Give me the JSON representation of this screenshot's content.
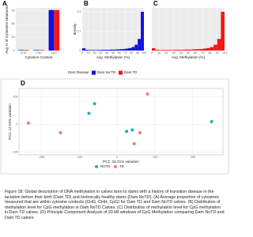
{
  "chart_data": [
    {
      "type": "bar",
      "panel": "A",
      "ylabel": "Avg % of Cytosines Measured",
      "xlabel": "Cytosine Context",
      "categories": [
        "CHG",
        "CHH",
        "CpG"
      ],
      "series": [
        {
          "name": "Dam No TD",
          "color": "#1010e0",
          "values": [
            1,
            1,
            76
          ]
        },
        {
          "name": "Dam TD",
          "color": "#f01818",
          "values": [
            1,
            1,
            76
          ]
        }
      ],
      "ylim": [
        0,
        80
      ],
      "yticks": [
        0,
        25,
        50,
        75
      ],
      "grid": true,
      "legend_title": "Dam Disease"
    },
    {
      "type": "histogram",
      "panel": "B",
      "ylabel": "density",
      "xlabel": "Avg. Methylation (%)",
      "color": "#1010e0",
      "bins": [
        0,
        5,
        10,
        15,
        20,
        25,
        30,
        35,
        40,
        45,
        50,
        55,
        60,
        65,
        70,
        75,
        80,
        85,
        90,
        95,
        100
      ],
      "values": [
        0.012,
        0.004,
        0.003,
        0.003,
        0.003,
        0.003,
        0.004,
        0.004,
        0.004,
        0.005,
        0.005,
        0.006,
        0.007,
        0.008,
        0.01,
        0.013,
        0.018,
        0.03,
        0.06,
        0.2
      ],
      "xlim": [
        0,
        100
      ],
      "xticks": [
        0,
        10,
        20,
        30,
        40,
        50,
        60,
        70,
        80,
        90,
        100
      ],
      "ylim": [
        0,
        0.22
      ],
      "yticks": [
        0,
        0.1,
        0.2
      ],
      "grid": true
    },
    {
      "type": "histogram",
      "panel": "C",
      "xlabel": "Avg. Methylation (%)",
      "color": "#f01818",
      "bins": [
        0,
        5,
        10,
        15,
        20,
        25,
        30,
        35,
        40,
        45,
        50,
        55,
        60,
        65,
        70,
        75,
        80,
        85,
        90,
        95,
        100
      ],
      "values": [
        0.012,
        0.004,
        0.003,
        0.003,
        0.003,
        0.003,
        0.004,
        0.004,
        0.004,
        0.005,
        0.005,
        0.006,
        0.007,
        0.008,
        0.01,
        0.013,
        0.018,
        0.03,
        0.06,
        0.2
      ],
      "xlim": [
        0,
        100
      ],
      "xticks": [
        0,
        10,
        20,
        30,
        40,
        50,
        60,
        70,
        80,
        90,
        100
      ],
      "ylim": [
        0,
        0.22
      ],
      "grid": true
    },
    {
      "type": "scatter",
      "panel": "D",
      "xlabel": "PC1: 15.31% variation",
      "ylabel": "PC2: 12.02% variation",
      "series": [
        {
          "name": "NOTD",
          "color": "#1fb3a6",
          "x": [
            -60,
            -75,
            250,
            25,
            40
          ],
          "y": [
            75,
            40,
            10,
            -25,
            -20
          ]
        },
        {
          "name": "TD",
          "color": "#f07c6c",
          "x": [
            80,
            -235,
            -150,
            60,
            45
          ],
          "y": [
            110,
            5,
            -30,
            -30,
            -70
          ]
        }
      ],
      "xlim": [
        -260,
        280
      ],
      "xticks": [
        -200,
        -100,
        0,
        100,
        200
      ],
      "ylim": [
        -110,
        130
      ],
      "yticks": [
        -100,
        0,
        100
      ],
      "grid": true
    }
  ],
  "caption": "Figure 18: Global description of DNA methylation in calves born to dams with a history of transition disease in the lactation before their birth (Dam TD) and historically healthy dams (Dam NoTD). (A) Average proportion of cytosines measured that are within cytosine contexts (CHG, CHH, CpG) for Dam TD and Dam NoTD calves. (B) Distribution of methylation level for CpG methylation in Dam NoTD Calves. (C) Distribution of methylation level for CpG methylation in Dam TD calves. (D) Principle Component Analysis of 20 kB windows of CpG Methylation comparing Dam NoTD and Dam TD calves."
}
